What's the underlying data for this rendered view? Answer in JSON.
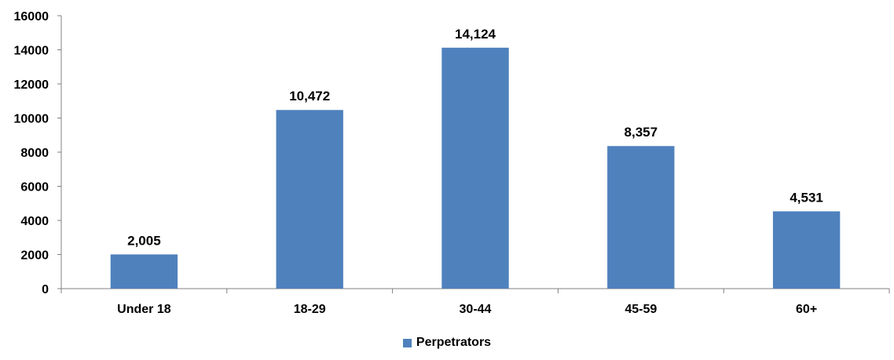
{
  "chart_data": {
    "type": "bar",
    "categories": [
      "Under 18",
      "18-29",
      "30-44",
      "45-59",
      "60+"
    ],
    "series": [
      {
        "name": "Perpetrators",
        "values": [
          2005,
          10472,
          14124,
          8357,
          4531
        ],
        "labels": [
          "2,005",
          "10,472",
          "14,124",
          "8,357",
          "4,531"
        ],
        "color": "#4f81bd"
      }
    ],
    "ylim": [
      0,
      16000
    ],
    "yticks": [
      0,
      2000,
      4000,
      6000,
      8000,
      10000,
      12000,
      14000,
      16000
    ],
    "ytick_labels": [
      "0",
      "2000",
      "4000",
      "6000",
      "8000",
      "10000",
      "12000",
      "14000",
      "16000"
    ],
    "title": "",
    "xlabel": "",
    "ylabel": "",
    "grid": false,
    "legend_position": "bottom"
  }
}
